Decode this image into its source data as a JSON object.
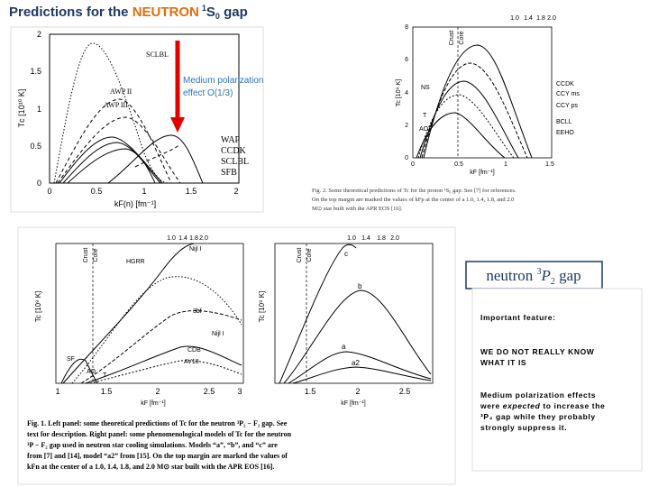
{
  "title": {
    "prefix": "Predictions for the ",
    "highlight": "NEUTRON",
    "sup": "1",
    "symbol": "S",
    "sub": "0",
    "suffix": " gap"
  },
  "annotation": [
    "Medium polarization",
    "effect O(1/3)"
  ],
  "figure_neutron_1s0": {
    "y_ticks": [
      "0",
      "0.5",
      "1",
      "1.5",
      "2"
    ],
    "x_ticks": [
      "0",
      "0.5",
      "1",
      "1.5",
      "2"
    ],
    "y_label": "Tс  [10¹⁰ K]",
    "x_label": "kF(n)   [fm⁻¹]",
    "curve_labels": [
      "SCLBL",
      "AWP II",
      "AWP III",
      "WAP",
      "CCDK",
      "SCLBL",
      "SFB"
    ]
  },
  "figure_proton": {
    "top_ticks": [
      "1.0",
      "1.4",
      "1.8",
      "2.0"
    ],
    "y_ticks": [
      "0",
      "2",
      "4",
      "6",
      "8"
    ],
    "x_ticks": [
      "0",
      "0.5",
      "1",
      "1.5"
    ],
    "y_label": "Tc [10⁹ K]",
    "x_label": "kF  [fm⁻¹]",
    "region_labels": [
      "Crust",
      "Core"
    ],
    "curve_labels": [
      "CCDK",
      "CCY ms",
      "CCY ps",
      "BCLL",
      "EEHO",
      "NS",
      "T",
      "AO"
    ],
    "caption": [
      "Fig. 2.   Some theoretical predictions of Tc for the proton ¹S₀ gap. See [7] for references.",
      "On the top margin are marked the values of kFp at the center of a 1.0, 1.4, 1.8, and 2.0",
      "M⊙ star built with the APR EOS [16]."
    ]
  },
  "figure_neutron_3p2": {
    "left": {
      "top_ticks": [
        "1.0",
        "1.4",
        "1.8",
        "2.0"
      ],
      "x_ticks": [
        "1",
        "1.5",
        "2",
        "2.5",
        "3"
      ],
      "y_label": "Tc [10⁹ K]",
      "x_label": "kF  [fm⁻¹]",
      "region_labels": [
        "Crust",
        "Core"
      ],
      "curve_labels": [
        "HGRR",
        "Nijl I",
        "3bf",
        "Nijl I",
        "CDB",
        "AV18",
        "SF",
        "AO",
        "T"
      ]
    },
    "right": {
      "top_ticks": [
        "1.0",
        "1.4",
        "1.8",
        "2.0"
      ],
      "x_ticks": [
        "1.5",
        "2",
        "2.5"
      ],
      "y_label": "Tc [10⁹ K]",
      "x_label": "kF  [fm⁻¹]",
      "region_labels": [
        "Crust",
        "Core"
      ],
      "curve_labels": [
        "c",
        "b",
        "a",
        "a2"
      ]
    },
    "caption": [
      "Fig. 1.   Left panel: some theoretical predictions of Tc for the neutron ³P₂ − F₂ gap. See",
      "text for description. Right panel: some phenomenological models of Tc for the neutron",
      "³P − F₂ gap used in neutron star cooling simulations. Models “a”, “b”, and “c” are",
      "from [7] and [14], model “a2” from [15]. On the top margin are marked the values of",
      "kFn at the center of a 1.0, 1.4, 1.8, and 2.0 M⊙ star built with the APR EOS [16]."
    ]
  },
  "heading": {
    "prefix": "neutron ",
    "sup": "3",
    "symbol": "P",
    "sub": "2",
    "suffix": " gap"
  },
  "note": {
    "feature": "Important feature:",
    "unknown": [
      "WE DO NOT REALLY KNOW",
      "WHAT IT IS"
    ],
    "effects": {
      "line1": "Medium polarization effects",
      "line2_prefix": "were ",
      "line2_emph": "expected",
      "line2_suffix": " to increase the",
      "line3": "³P₂ gap while they probably",
      "line4": "strongly suppress it."
    }
  }
}
